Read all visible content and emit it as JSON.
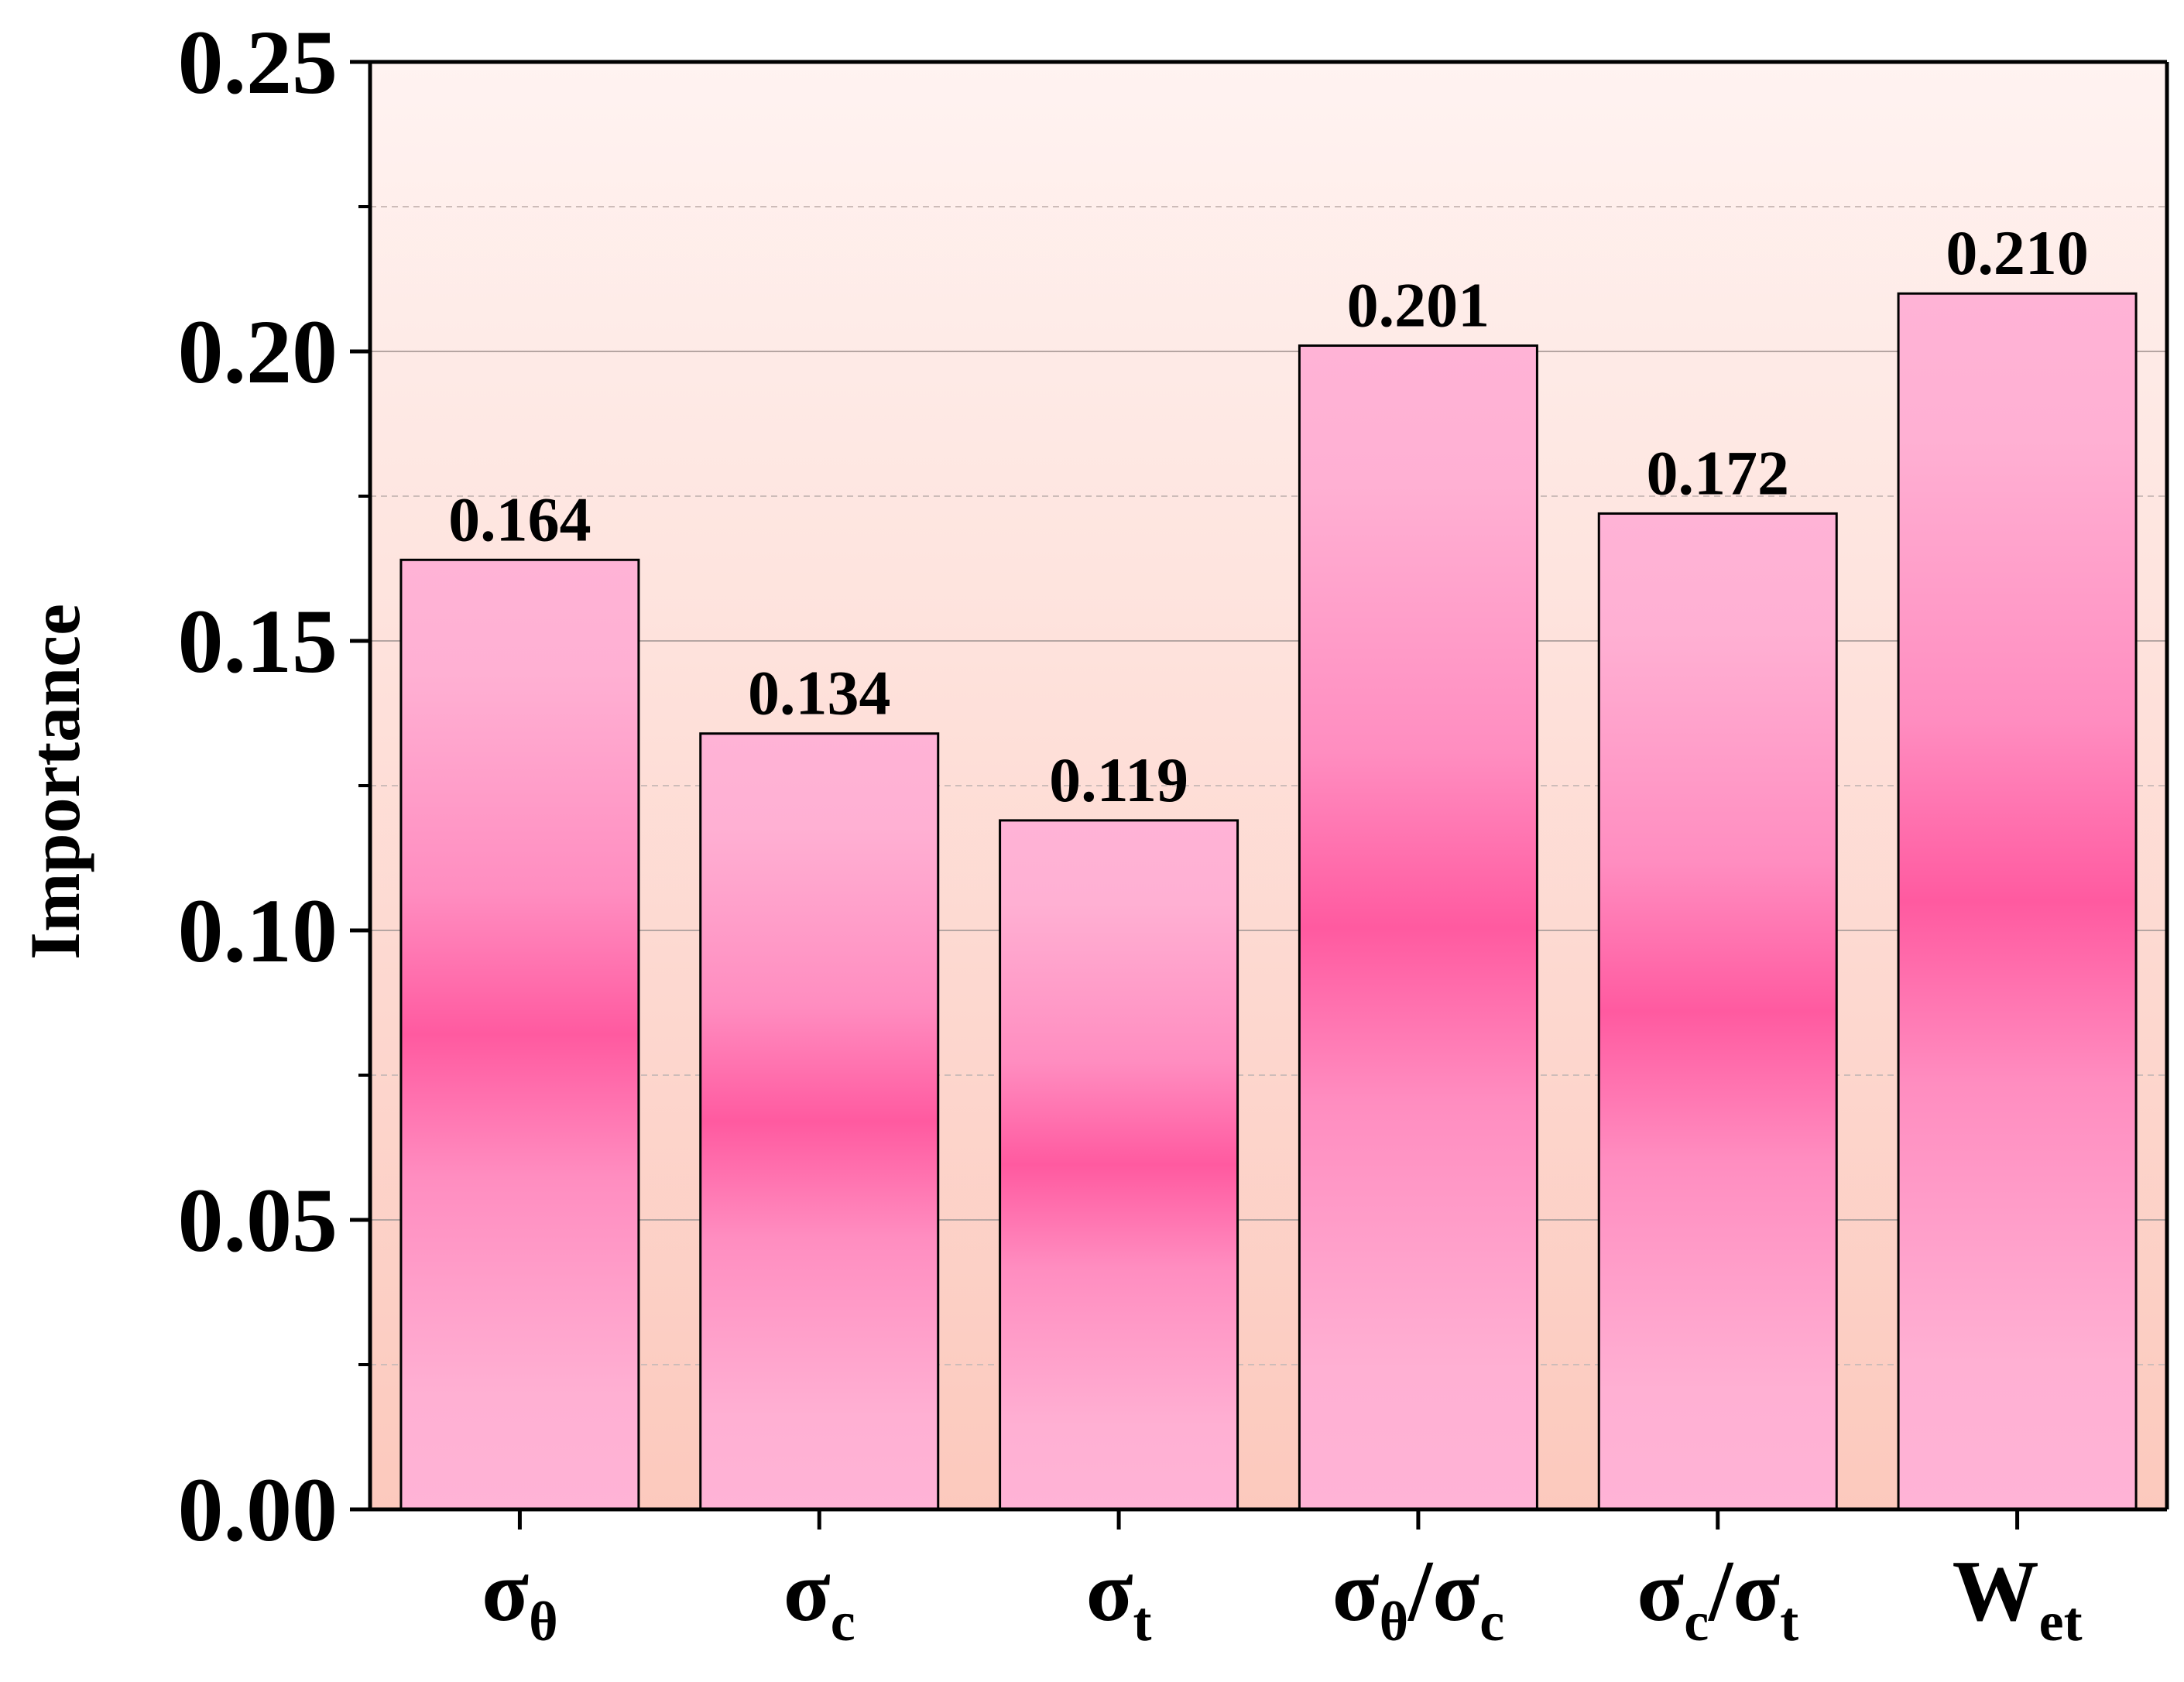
{
  "chart_data": {
    "type": "bar",
    "title": "",
    "xlabel": "",
    "ylabel": "Importance",
    "ylim": [
      0,
      0.25
    ],
    "yticks": [
      "0.00",
      "0.05",
      "0.10",
      "0.15",
      "0.20",
      "0.25"
    ],
    "categories": [
      {
        "main": "σ",
        "sub": "θ"
      },
      {
        "main": "σ",
        "sub": "c"
      },
      {
        "main": "σ",
        "sub": "t"
      },
      {
        "main": "σ",
        "sub": "θ",
        "main2": "/σ",
        "sub2": "c"
      },
      {
        "main": "σ",
        "sub": "c",
        "main2": "/σ",
        "sub2": "t"
      },
      {
        "main": "W",
        "sub": "et"
      }
    ],
    "values": [
      0.164,
      0.134,
      0.119,
      0.201,
      0.172,
      0.21
    ],
    "value_labels": [
      "0.164",
      "0.134",
      "0.119",
      "0.201",
      "0.172",
      "0.210"
    ],
    "grid": true,
    "colors": {
      "bar_light": "#ffb3d6",
      "bar_dark": "#ff5aa0",
      "background_top": "#fff3f1",
      "background_bottom": "#fcc9bd"
    }
  }
}
